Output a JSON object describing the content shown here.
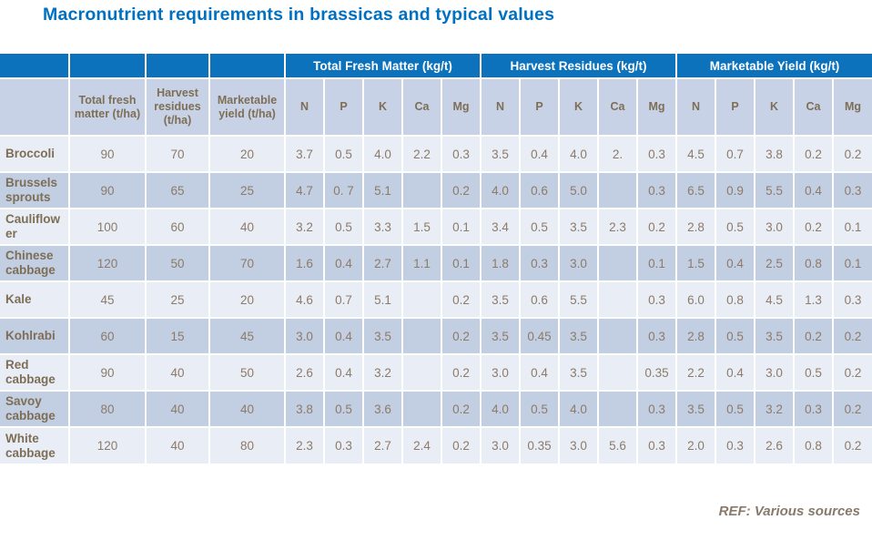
{
  "title": "Macronutrient requirements in brassicas and typical values",
  "footer": {
    "ref": "REF: Various sources"
  },
  "colors": {
    "title": "#0070C0",
    "header_bg": "#0D72BC",
    "header_text": "#FFFFFF",
    "subheader_bg": "#C8D2E6",
    "band_bg": "#C2CEE2",
    "light_bg": "#E9EDF6",
    "cell_text": "#8C7B68",
    "label_text": "#7E6E56",
    "ref_text": "#877A6B"
  },
  "table": {
    "group_headers": [
      {
        "label": "",
        "span": 4
      },
      {
        "label": "Total Fresh Matter (kg/t)",
        "span": 5
      },
      {
        "label": "Harvest Residues (kg/t)",
        "span": 5
      },
      {
        "label": "Marketable Yield (kg/t)",
        "span": 5
      }
    ],
    "sub_headers": [
      "",
      "Total fresh matter (t/ha)",
      "Harvest residues (t/ha)",
      "Marketable yield (t/ha)",
      "N",
      "P",
      "K",
      "Ca",
      "Mg",
      "N",
      "P",
      "K",
      "Ca",
      "Mg",
      "N",
      "P",
      "K",
      "Ca",
      "Mg"
    ],
    "rows": [
      {
        "label": "Broccoli",
        "values": [
          "90",
          "70",
          "20",
          "3.7",
          "0.5",
          "4.0",
          "2.2",
          "0.3",
          "3.5",
          "0.4",
          "4.0",
          "2.",
          "0.3",
          "4.5",
          "0.7",
          "3.8",
          "0.2",
          "0.2"
        ]
      },
      {
        "label": "Brussels sprouts",
        "values": [
          "90",
          "65",
          "25",
          "4.7",
          "0. 7",
          "5.1",
          "",
          "0.2",
          "4.0",
          "0.6",
          "5.0",
          "",
          "0.3",
          "6.5",
          "0.9",
          "5.5",
          "0.4",
          "0.3"
        ]
      },
      {
        "label": "Cauliflower",
        "values": [
          "100",
          "60",
          "40",
          "3.2",
          "0.5",
          "3.3",
          "1.5",
          "0.1",
          "3.4",
          "0.5",
          "3.5",
          "2.3",
          "0.2",
          "2.8",
          "0.5",
          "3.0",
          "0.2",
          "0.1"
        ]
      },
      {
        "label": "Chinese cabbage",
        "values": [
          "120",
          "50",
          "70",
          "1.6",
          "0.4",
          "2.7",
          "1.1",
          "0.1",
          "1.8",
          "0.3",
          "3.0",
          "",
          "0.1",
          "1.5",
          "0.4",
          "2.5",
          "0.8",
          "0.1"
        ]
      },
      {
        "label": "Kale",
        "values": [
          "45",
          "25",
          "20",
          "4.6",
          "0.7",
          "5.1",
          "",
          "0.2",
          "3.5",
          "0.6",
          "5.5",
          "",
          "0.3",
          "6.0",
          "0.8",
          "4.5",
          "1.3",
          "0.3"
        ]
      },
      {
        "label": "Kohlrabi",
        "values": [
          "60",
          "15",
          "45",
          "3.0",
          "0.4",
          "3.5",
          "",
          "0.2",
          "3.5",
          "0.45",
          "3.5",
          "",
          "0.3",
          "2.8",
          "0.5",
          "3.5",
          "0.2",
          "0.2"
        ]
      },
      {
        "label": "Red cabbage",
        "values": [
          "90",
          "40",
          "50",
          "2.6",
          "0.4",
          "3.2",
          "",
          "0.2",
          "3.0",
          "0.4",
          "3.5",
          "",
          "0.35",
          "2.2",
          "0.4",
          "3.0",
          "0.5",
          "0.2"
        ]
      },
      {
        "label": "Savoy cabbage",
        "values": [
          "80",
          "40",
          "40",
          "3.8",
          "0.5",
          "3.6",
          "",
          "0.2",
          "4.0",
          "0.5",
          "4.0",
          "",
          "0.3",
          "3.5",
          "0.5",
          "3.2",
          "0.3",
          "0.2"
        ]
      },
      {
        "label": "White cabbage",
        "values": [
          "120",
          "40",
          "80",
          "2.3",
          "0.3",
          "2.7",
          "2.4",
          "0.2",
          "3.0",
          "0.35",
          "3.0",
          "5.6",
          "0.3",
          "2.0",
          "0.3",
          "2.6",
          "0.8",
          "0.2"
        ]
      }
    ]
  }
}
